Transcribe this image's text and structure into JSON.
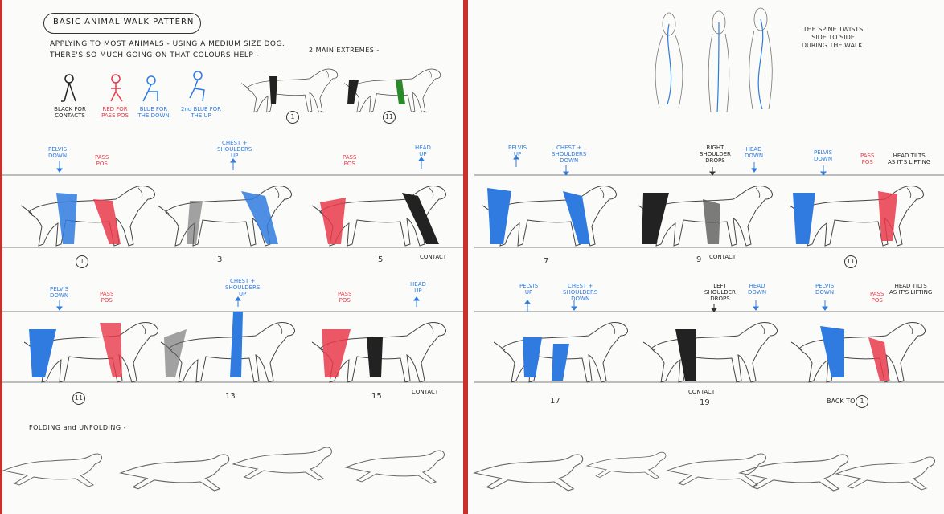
{
  "title": "BASIC ANIMAL WALK PATTERN",
  "intro_line1": "APPLYING TO MOST ANIMALS - USING A MEDIUM SIZE DOG.",
  "intro_line2": "THERE'S SO MUCH GOING ON THAT COLOURS HELP -",
  "extremes_label": "2 MAIN EXTREMES -",
  "extremes_num1": "1",
  "extremes_num2": "11",
  "legend": {
    "black": "BLACK FOR\nCONTACTS",
    "red": "RED FOR\nPASS POS",
    "blue": "BLUE FOR\nTHE DOWN",
    "blue2": "2nd BLUE FOR\nTHE UP"
  },
  "spine_note": "THE\nSPINE TWISTS\nSIDE TO SIDE\nDURING\nTHE WALK.",
  "row1_labels": {
    "pelvis_down": "PELVIS\nDOWN",
    "pass_pos_a": "PASS\nPOS",
    "chest_up": "CHEST +\nSHOULDERS\nUP",
    "pass_pos_b": "PASS\nPOS",
    "head_up": "HEAD\nUP",
    "pelvis_up": "PELVIS\nUP",
    "chest_down": "CHEST +\nSHOULDERS\nDOWN",
    "right_shoulder": "RIGHT\nSHOULDER\nDROPS",
    "head_down": "HEAD\nDOWN",
    "pelvis_down_b": "PELVIS\nDOWN",
    "pass_pos_c": "PASS\nPOS",
    "head_tilts": "HEAD TILTS\nAS IT'S LIFTING"
  },
  "row1_numbers": [
    "1",
    "3",
    "5",
    "7",
    "9",
    "11"
  ],
  "row1_contact_a": "CONTACT",
  "row1_contact_b": "CONTACT",
  "row2_labels": {
    "pelvis_down": "PELVIS\nDOWN",
    "pass_pos_a": "PASS\nPOS",
    "chest_up": "CHEST +\nSHOULDERS\nUP",
    "pass_pos_b": "PASS\nPOS",
    "head_up": "HEAD\nUP",
    "pelvis_up": "PELVIS\nUP",
    "chest_down": "CHEST +\nSHOULDERS\nDOWN",
    "left_shoulder": "LEFT\nSHOULDER\nDROPS",
    "head_down": "HEAD\nDOWN",
    "pelvis_down_b": "PELVIS\nDOWN",
    "pass_pos_c": "PASS\nPOS",
    "head_tilts": "HEAD TILTS\nAS IT'S LIFTING"
  },
  "row2_numbers": [
    "11",
    "13",
    "15",
    "17",
    "19"
  ],
  "row2_contact_a": "CONTACT",
  "row2_contact_b": "CONTACT",
  "back_to": "BACK TO",
  "back_to_num": "1",
  "folding_label": "FOLDING and UNFOLDING -",
  "colors": {
    "blue": "#2f7be0",
    "red": "#e8394a",
    "black": "#222222",
    "page_edge": "#c9302c"
  }
}
